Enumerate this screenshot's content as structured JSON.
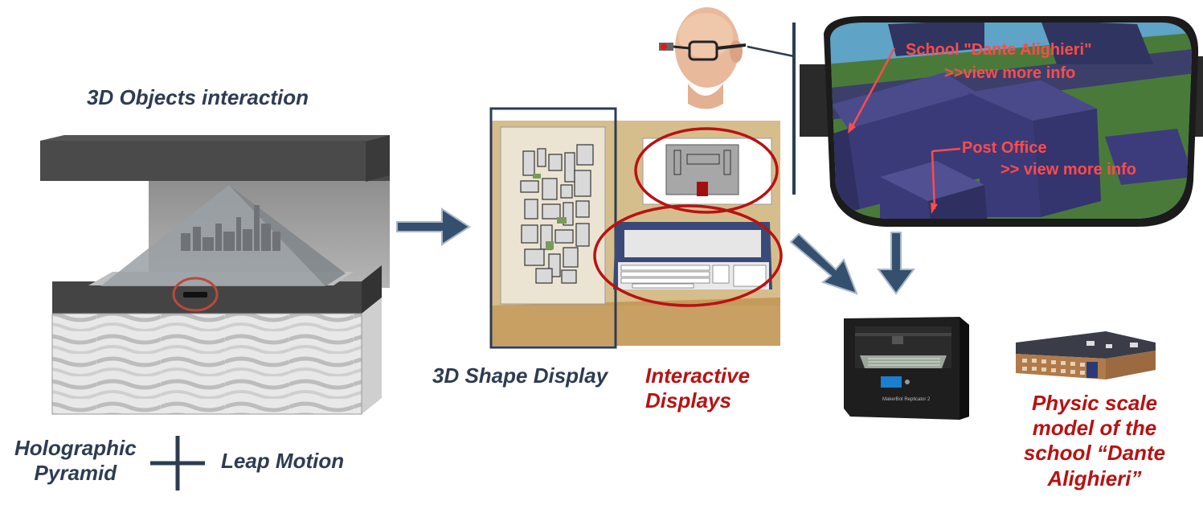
{
  "labels": {
    "objects_interaction": "3D Objects interaction",
    "holographic_pyramid": "Holographic\nPyramid",
    "leap_motion": "Leap Motion",
    "shape_display": "3D Shape Display",
    "interactive_displays": "Interactive\nDisplays",
    "physic_model": "Physic scale\nmodel of the\nschool “Dante\nAlighieri”"
  },
  "ar_view": {
    "school_label": "School \"Dante Alighieri\"",
    "school_more": ">>view more info",
    "post_label": "Post Office",
    "post_more": ">> view more info"
  },
  "printer_brand": "MakerBot Replicator 2",
  "colors": {
    "dark_text": "#2e3c52",
    "red_text": "#b81212",
    "arrow": "#35506e",
    "ar_label": "#ff4b4b",
    "box_outline": "#2e3c52",
    "circle": "#b81212"
  }
}
